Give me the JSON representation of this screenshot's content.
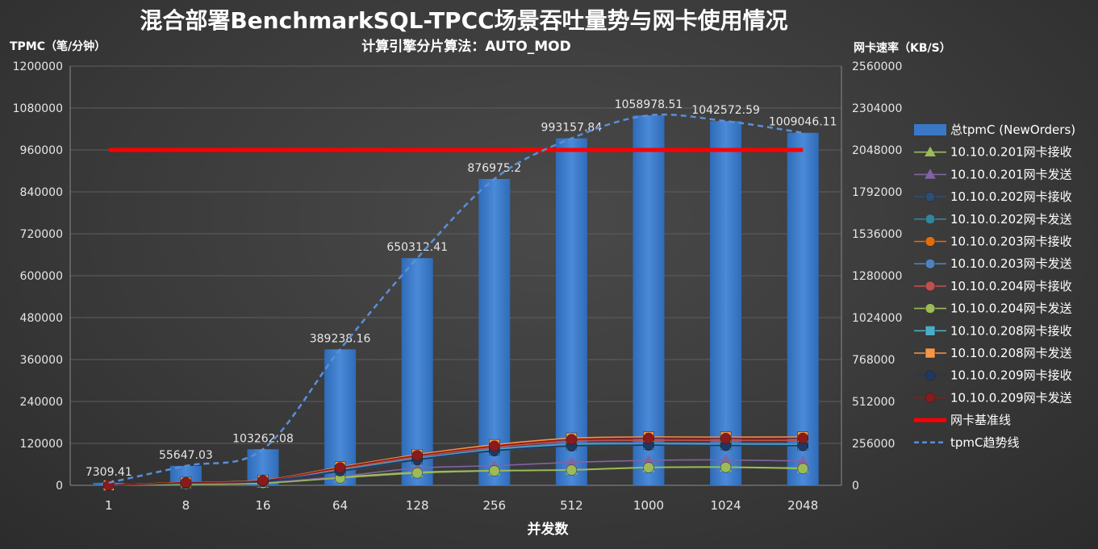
{
  "title": "混合部署BenchmarkSQL-TPCC场景吞吐量势与网卡使用情况",
  "subtitle": "计算引擎分片算法：AUTO_MOD",
  "chart_data": {
    "type": "bar",
    "title": "混合部署BenchmarkSQL-TPCC场景吞吐量势与网卡使用情况",
    "subtitle": "计算引擎分片算法：AUTO_MOD",
    "xlabel": "并发数",
    "ylabel": "TPMC（笔/分钟）",
    "y2label": "网卡速率（KB/S）",
    "categories": [
      "1",
      "8",
      "16",
      "64",
      "128",
      "256",
      "512",
      "1000",
      "1024",
      "2048"
    ],
    "ylim": [
      0,
      1200000
    ],
    "y_ticks": [
      0,
      120000,
      240000,
      360000,
      480000,
      600000,
      720000,
      840000,
      960000,
      1080000,
      1200000
    ],
    "y2lim": [
      0,
      2560000
    ],
    "y2_ticks": [
      0,
      256000,
      512000,
      768000,
      1024000,
      1280000,
      1536000,
      1792000,
      2048000,
      2304000,
      2560000
    ],
    "bars": {
      "name": "总tpmC (NewOrders)",
      "color": "#3a78c7",
      "values": [
        7309.41,
        55647.03,
        103262.08,
        389238.16,
        650312.41,
        876975.2,
        993157.84,
        1058978.51,
        1042572.59,
        1009046.11
      ],
      "labels": [
        "7309.41",
        "55647.03",
        "103262.08",
        "389238.16",
        "650312.41",
        "876975.2",
        "993157.84",
        "1058978.51",
        "1042572.59",
        "1009046.11"
      ]
    },
    "series": [
      {
        "name": "10.10.0.201网卡接收",
        "marker": "triangle",
        "color": "#9bbb59",
        "values": [
          0,
          8000,
          14000,
          50000,
          80000,
          90000,
          95000,
          110000,
          112000,
          105000
        ]
      },
      {
        "name": "10.10.0.201网卡发送",
        "marker": "triangle",
        "color": "#8064a2",
        "values": [
          0,
          9000,
          16000,
          55000,
          105000,
          120000,
          140000,
          152000,
          155000,
          148000
        ]
      },
      {
        "name": "10.10.0.202网卡接收",
        "marker": "circle",
        "color": "#2c4d75",
        "values": [
          0,
          12000,
          22000,
          85000,
          155000,
          210000,
          240000,
          245000,
          243000,
          242000
        ]
      },
      {
        "name": "10.10.0.202网卡发送",
        "marker": "circle",
        "color": "#31859c",
        "values": [
          0,
          13000,
          24000,
          90000,
          160000,
          215000,
          245000,
          248000,
          246000,
          245000
        ]
      },
      {
        "name": "10.10.0.203网卡接收",
        "marker": "circle",
        "color": "#e46c0a",
        "values": [
          0,
          18000,
          30000,
          110000,
          185000,
          245000,
          285000,
          292000,
          292000,
          293000
        ]
      },
      {
        "name": "10.10.0.203网卡发送",
        "marker": "circle",
        "color": "#4f81bd",
        "values": [
          0,
          15000,
          26000,
          95000,
          165000,
          222000,
          255000,
          258000,
          256000,
          255000
        ]
      },
      {
        "name": "10.10.0.204网卡接收",
        "marker": "circle",
        "color": "#c0504d",
        "values": [
          0,
          16000,
          28000,
          100000,
          175000,
          232000,
          270000,
          275000,
          274000,
          275000
        ]
      },
      {
        "name": "10.10.0.204网卡发送",
        "marker": "circle",
        "color": "#9bbb59",
        "values": [
          0,
          7000,
          13000,
          45000,
          75000,
          88000,
          93000,
          108000,
          110000,
          102000
        ]
      },
      {
        "name": "10.10.0.208网卡接收",
        "marker": "square",
        "color": "#4bacc6",
        "values": [
          0,
          14000,
          25000,
          92000,
          162000,
          218000,
          248000,
          250000,
          249000,
          248000
        ]
      },
      {
        "name": "10.10.0.208网卡发送",
        "marker": "square",
        "color": "#f79646",
        "values": [
          0,
          18000,
          31000,
          112000,
          188000,
          248000,
          288000,
          295000,
          294000,
          295000
        ]
      },
      {
        "name": "10.10.0.209网卡接收",
        "marker": "circle",
        "color": "#1f3864",
        "values": [
          0,
          13000,
          23000,
          88000,
          158000,
          212000,
          242000,
          246000,
          244000,
          243000
        ]
      },
      {
        "name": "10.10.0.209网卡发送",
        "marker": "circle",
        "color": "#8b1a1a",
        "values": [
          0,
          17000,
          29000,
          108000,
          182000,
          240000,
          280000,
          288000,
          287000,
          288000
        ]
      }
    ],
    "baseline": {
      "name": "网卡基准线",
      "color": "#ff0000",
      "value": 960000
    },
    "trendline": {
      "name": "tpmC趋势线",
      "color": "#5a8fd8"
    },
    "legend_position": "right"
  }
}
